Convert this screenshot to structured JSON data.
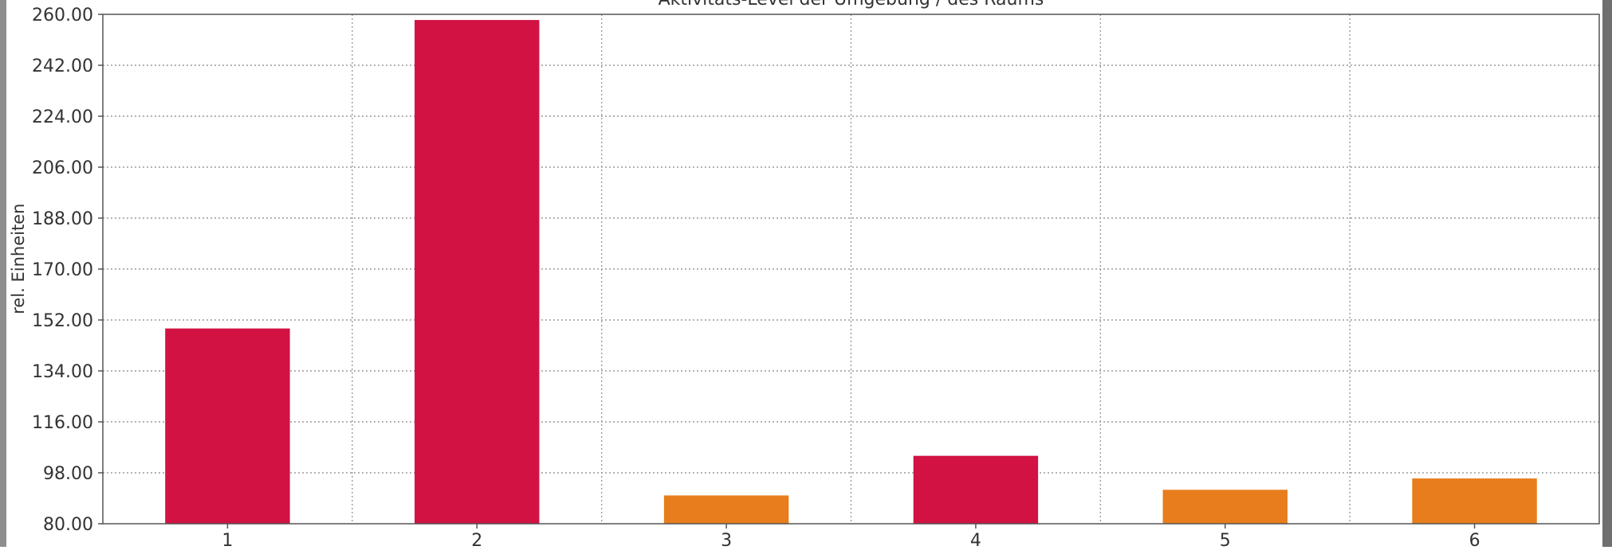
{
  "chart_data": {
    "type": "bar",
    "title": "Aktivitäts-Level der Umgebung / des Raums",
    "xlabel": "",
    "ylabel": "rel. Einheiten",
    "categories": [
      "1",
      "2",
      "3",
      "4",
      "5",
      "6"
    ],
    "values": [
      149,
      258,
      90,
      104,
      92,
      96
    ],
    "bar_colors": [
      "#d11243",
      "#d11243",
      "#e77d1c",
      "#d11243",
      "#e77d1c",
      "#e77d1c"
    ],
    "ylim": [
      80,
      260
    ],
    "yticks": [
      "80.00",
      "98.00",
      "116.00",
      "134.00",
      "152.00",
      "170.00",
      "188.00",
      "206.00",
      "224.00",
      "242.00",
      "260.00"
    ],
    "grid": true,
    "legend": "none"
  },
  "colors": {
    "series_red": "#d11243",
    "series_orange": "#e77d1c",
    "axis": "#555555",
    "grid": "#9a9a9a",
    "text": "#333333"
  }
}
